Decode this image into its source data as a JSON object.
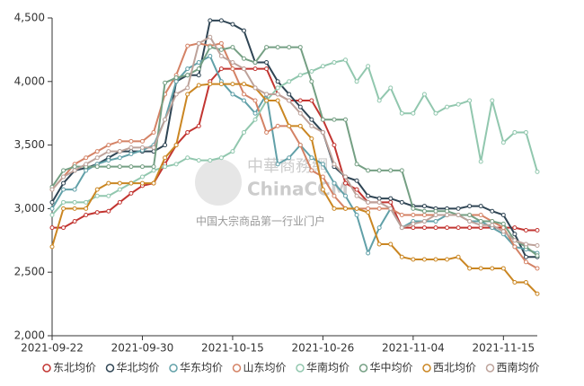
{
  "chart_data": {
    "type": "line",
    "watermark": [
      "中華商務網",
      "ChinaCCM",
      "中国大宗商品第一行业门户"
    ],
    "categories": [
      "2021-09-22",
      null,
      null,
      null,
      null,
      null,
      null,
      null,
      "2021-09-30",
      null,
      null,
      null,
      null,
      null,
      null,
      null,
      "2021-10-15",
      null,
      null,
      null,
      null,
      null,
      null,
      null,
      "2021-10-26",
      null,
      null,
      null,
      null,
      null,
      null,
      null,
      "2021-11-04",
      null,
      null,
      null,
      null,
      null,
      null,
      null,
      "2021-11-15",
      null,
      null,
      null
    ],
    "ylim": [
      2000,
      4500
    ],
    "yticks": [
      {
        "value": 2000,
        "label": "2,000"
      },
      {
        "value": 2500,
        "label": "2,500"
      },
      {
        "value": 3000,
        "label": "3,000"
      },
      {
        "value": 3500,
        "label": "3,500"
      },
      {
        "value": 4000,
        "label": "4,000"
      },
      {
        "value": 4500,
        "label": "4,500"
      }
    ],
    "legend": "bottom",
    "series": [
      {
        "name": "东北均价",
        "color": "#c23531",
        "values": [
          2850,
          2850,
          2900,
          2950,
          2970,
          2980,
          3050,
          3120,
          3180,
          3200,
          3350,
          3500,
          3600,
          3650,
          4000,
          4100,
          4100,
          4100,
          4100,
          4100,
          3900,
          3850,
          3850,
          3850,
          3700,
          3500,
          3200,
          3150,
          3050,
          3050,
          3050,
          2850,
          2850,
          2850,
          2850,
          2850,
          2850,
          2850,
          2850,
          2850,
          2850,
          2850,
          2830,
          2830
        ]
      },
      {
        "name": "华北均价",
        "color": "#2f4554",
        "values": [
          3050,
          3200,
          3300,
          3320,
          3350,
          3400,
          3450,
          3450,
          3450,
          3450,
          3500,
          4000,
          4050,
          4050,
          4480,
          4480,
          4450,
          4400,
          4150,
          4150,
          4000,
          3900,
          3800,
          3700,
          3600,
          3330,
          3250,
          3220,
          3100,
          3080,
          3080,
          3050,
          3020,
          3020,
          3000,
          3000,
          3000,
          3020,
          3020,
          2980,
          2950,
          2800,
          2620,
          2620
        ]
      },
      {
        "name": "华东均价",
        "color": "#61a0a8",
        "values": [
          3000,
          3150,
          3150,
          3300,
          3350,
          3380,
          3400,
          3430,
          3460,
          3500,
          3700,
          4000,
          4100,
          4150,
          4200,
          4000,
          3900,
          3850,
          3750,
          3900,
          3350,
          3400,
          3500,
          3400,
          3350,
          3200,
          3100,
          2950,
          2650,
          2850,
          3000,
          2850,
          2900,
          2900,
          2900,
          2950,
          2950,
          2900,
          2900,
          2850,
          2800,
          2700,
          2680,
          2650
        ]
      },
      {
        "name": "山东均价",
        "color": "#d48265",
        "values": [
          3150,
          3250,
          3350,
          3400,
          3450,
          3500,
          3530,
          3530,
          3530,
          3600,
          3900,
          4050,
          4280,
          4300,
          4280,
          4300,
          4100,
          3900,
          3850,
          3600,
          3650,
          3650,
          3500,
          3300,
          3250,
          3100,
          3000,
          3000,
          3000,
          3000,
          3000,
          2950,
          2950,
          2950,
          2950,
          2950,
          2950,
          2950,
          2950,
          2900,
          2850,
          2700,
          2580,
          2530
        ]
      },
      {
        "name": "华南均价",
        "color": "#91c7ae",
        "values": [
          2950,
          3050,
          3050,
          3050,
          3100,
          3100,
          3150,
          3200,
          3250,
          3300,
          3330,
          3350,
          3400,
          3380,
          3380,
          3400,
          3450,
          3600,
          3700,
          3850,
          3950,
          4000,
          4050,
          4080,
          4120,
          4150,
          4170,
          4000,
          4120,
          3850,
          3950,
          3750,
          3750,
          3900,
          3750,
          3800,
          3820,
          3850,
          3370,
          3850,
          3520,
          3600,
          3600,
          3290
        ]
      },
      {
        "name": "华中均价",
        "color": "#749f83",
        "values": [
          3170,
          3300,
          3330,
          3330,
          3330,
          3330,
          3330,
          3330,
          3330,
          3330,
          3990,
          4030,
          4050,
          4100,
          4270,
          4250,
          4270,
          4180,
          4150,
          4270,
          4270,
          4270,
          4270,
          4000,
          3700,
          3700,
          3700,
          3350,
          3300,
          3300,
          3300,
          3300,
          3000,
          2980,
          2980,
          2980,
          2950,
          2950,
          2900,
          2900,
          2880,
          2750,
          2700,
          2630
        ]
      },
      {
        "name": "西北均价",
        "color": "#ca8622",
        "values": [
          2700,
          3000,
          3000,
          3000,
          3150,
          3200,
          3200,
          3200,
          3200,
          3200,
          3400,
          3500,
          3900,
          3970,
          3980,
          3980,
          3980,
          3980,
          3950,
          3850,
          3850,
          3650,
          3650,
          3550,
          3150,
          3000,
          3000,
          3000,
          2970,
          2720,
          2720,
          2620,
          2600,
          2600,
          2600,
          2600,
          2620,
          2530,
          2530,
          2530,
          2530,
          2420,
          2420,
          2330
        ]
      },
      {
        "name": "西南均价",
        "color": "#bda29a",
        "values": [
          3150,
          3250,
          3300,
          3350,
          3400,
          3450,
          3450,
          3480,
          3480,
          3480,
          3700,
          3900,
          3950,
          4300,
          4350,
          4200,
          4150,
          4100,
          3950,
          3900,
          3900,
          3850,
          3750,
          3650,
          3600,
          3350,
          3250,
          3100,
          3050,
          3050,
          3000,
          2850,
          2880,
          2900,
          2950,
          2950,
          2950,
          2900,
          2870,
          2870,
          2820,
          2750,
          2720,
          2710
        ]
      }
    ]
  }
}
